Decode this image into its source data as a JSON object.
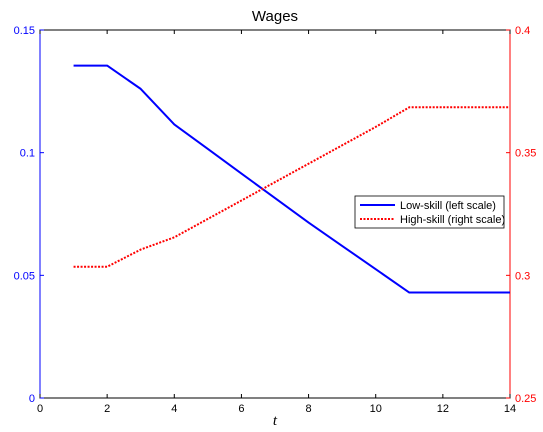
{
  "chart_data": {
    "type": "line",
    "title": "Wages",
    "xlabel": "t",
    "ylabel_left": "",
    "ylabel_right": "",
    "xlim": [
      0,
      14
    ],
    "ylim_left": [
      0,
      0.15
    ],
    "ylim_right": [
      0.25,
      0.4
    ],
    "x_ticks": [
      0,
      2,
      4,
      6,
      8,
      10,
      12,
      14
    ],
    "x_tick_labels": [
      "0",
      "2",
      "4",
      "6",
      "8",
      "10",
      "12",
      "14"
    ],
    "y_left_ticks": [
      0,
      0.05,
      0.1,
      0.15
    ],
    "y_left_tick_labels": [
      "0",
      "0.05",
      "0.1",
      "0.15"
    ],
    "y_right_ticks": [
      0.25,
      0.3,
      0.35,
      0.4
    ],
    "y_right_tick_labels": [
      "0.25",
      "0.3",
      "0.35",
      "0.4"
    ],
    "grid": false,
    "legend_position": "right",
    "left_axis_color": "#0000ff",
    "right_axis_color": "#ff0000",
    "series": [
      {
        "name": "Low-skill (left scale)",
        "axis": "left",
        "color": "#0000ff",
        "style": "solid",
        "x": [
          1,
          2,
          3,
          4,
          5,
          6,
          7,
          8,
          9,
          10,
          11,
          12,
          13,
          14
        ],
        "y": [
          0.1355,
          0.1355,
          0.126,
          0.1115,
          0.1015,
          0.0915,
          0.0815,
          0.0715,
          0.062,
          0.0525,
          0.043,
          0.043,
          0.043,
          0.043
        ]
      },
      {
        "name": "High-skill (right scale)",
        "axis": "right",
        "color": "#ff0000",
        "style": "dotted",
        "x": [
          1,
          2,
          3,
          4,
          5,
          6,
          7,
          8,
          9,
          10,
          11,
          12,
          13,
          14
        ],
        "y": [
          0.3035,
          0.3035,
          0.3105,
          0.3155,
          0.323,
          0.3305,
          0.338,
          0.3455,
          0.353,
          0.3605,
          0.3685,
          0.3685,
          0.3685,
          0.3685
        ]
      }
    ]
  }
}
